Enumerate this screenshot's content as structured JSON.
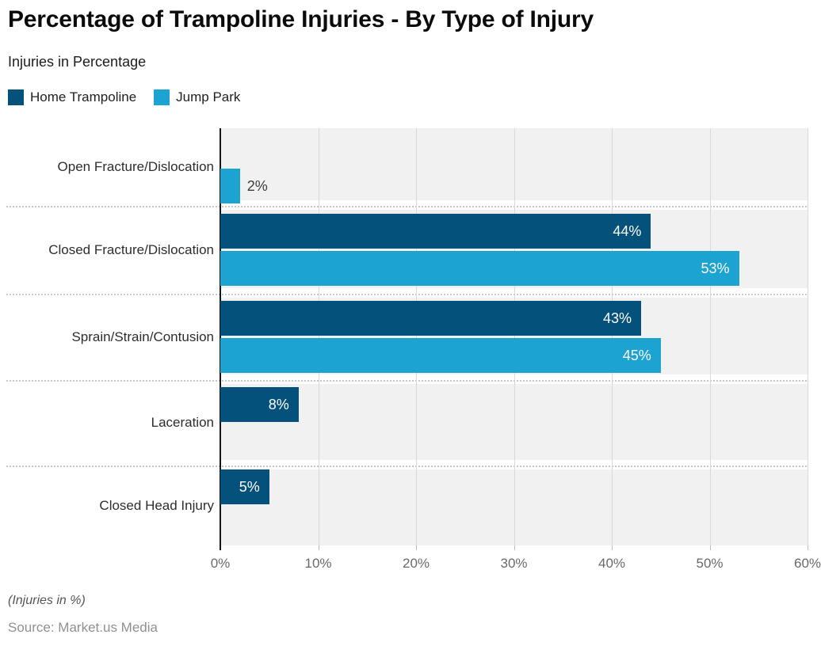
{
  "chart_data": {
    "type": "bar",
    "orientation": "horizontal",
    "title": "Percentage of Trampoline Injuries - By Type of Injury",
    "subtitle": "Injuries in Percentage",
    "categories": [
      "Open Fracture/Dislocation",
      "Closed Fracture/Dislocation",
      "Sprain/Strain/Contusion",
      "Laceration",
      "Closed Head Injury"
    ],
    "series": [
      {
        "name": "Home Trampoline",
        "color": "#04517b",
        "values": [
          null,
          44,
          43,
          8,
          5
        ]
      },
      {
        "name": "Jump Park",
        "color": "#1da3d2",
        "values": [
          2,
          53,
          45,
          null,
          null
        ]
      }
    ],
    "value_suffix": "%",
    "xlim": [
      0,
      60
    ],
    "x_ticks": [
      "0%",
      "10%",
      "20%",
      "30%",
      "40%",
      "50%",
      "60%"
    ],
    "grid": "vertical",
    "legend_position": "top-left",
    "footnote": "(Injuries in %)",
    "source": "Source: Market.us Media",
    "colors": {
      "band_bg": "#f1f1f1",
      "gridline": "#d9d9d9",
      "axis": "#161616",
      "label_inside": "#ffffff",
      "label_outside": "#3c3c3c"
    }
  }
}
